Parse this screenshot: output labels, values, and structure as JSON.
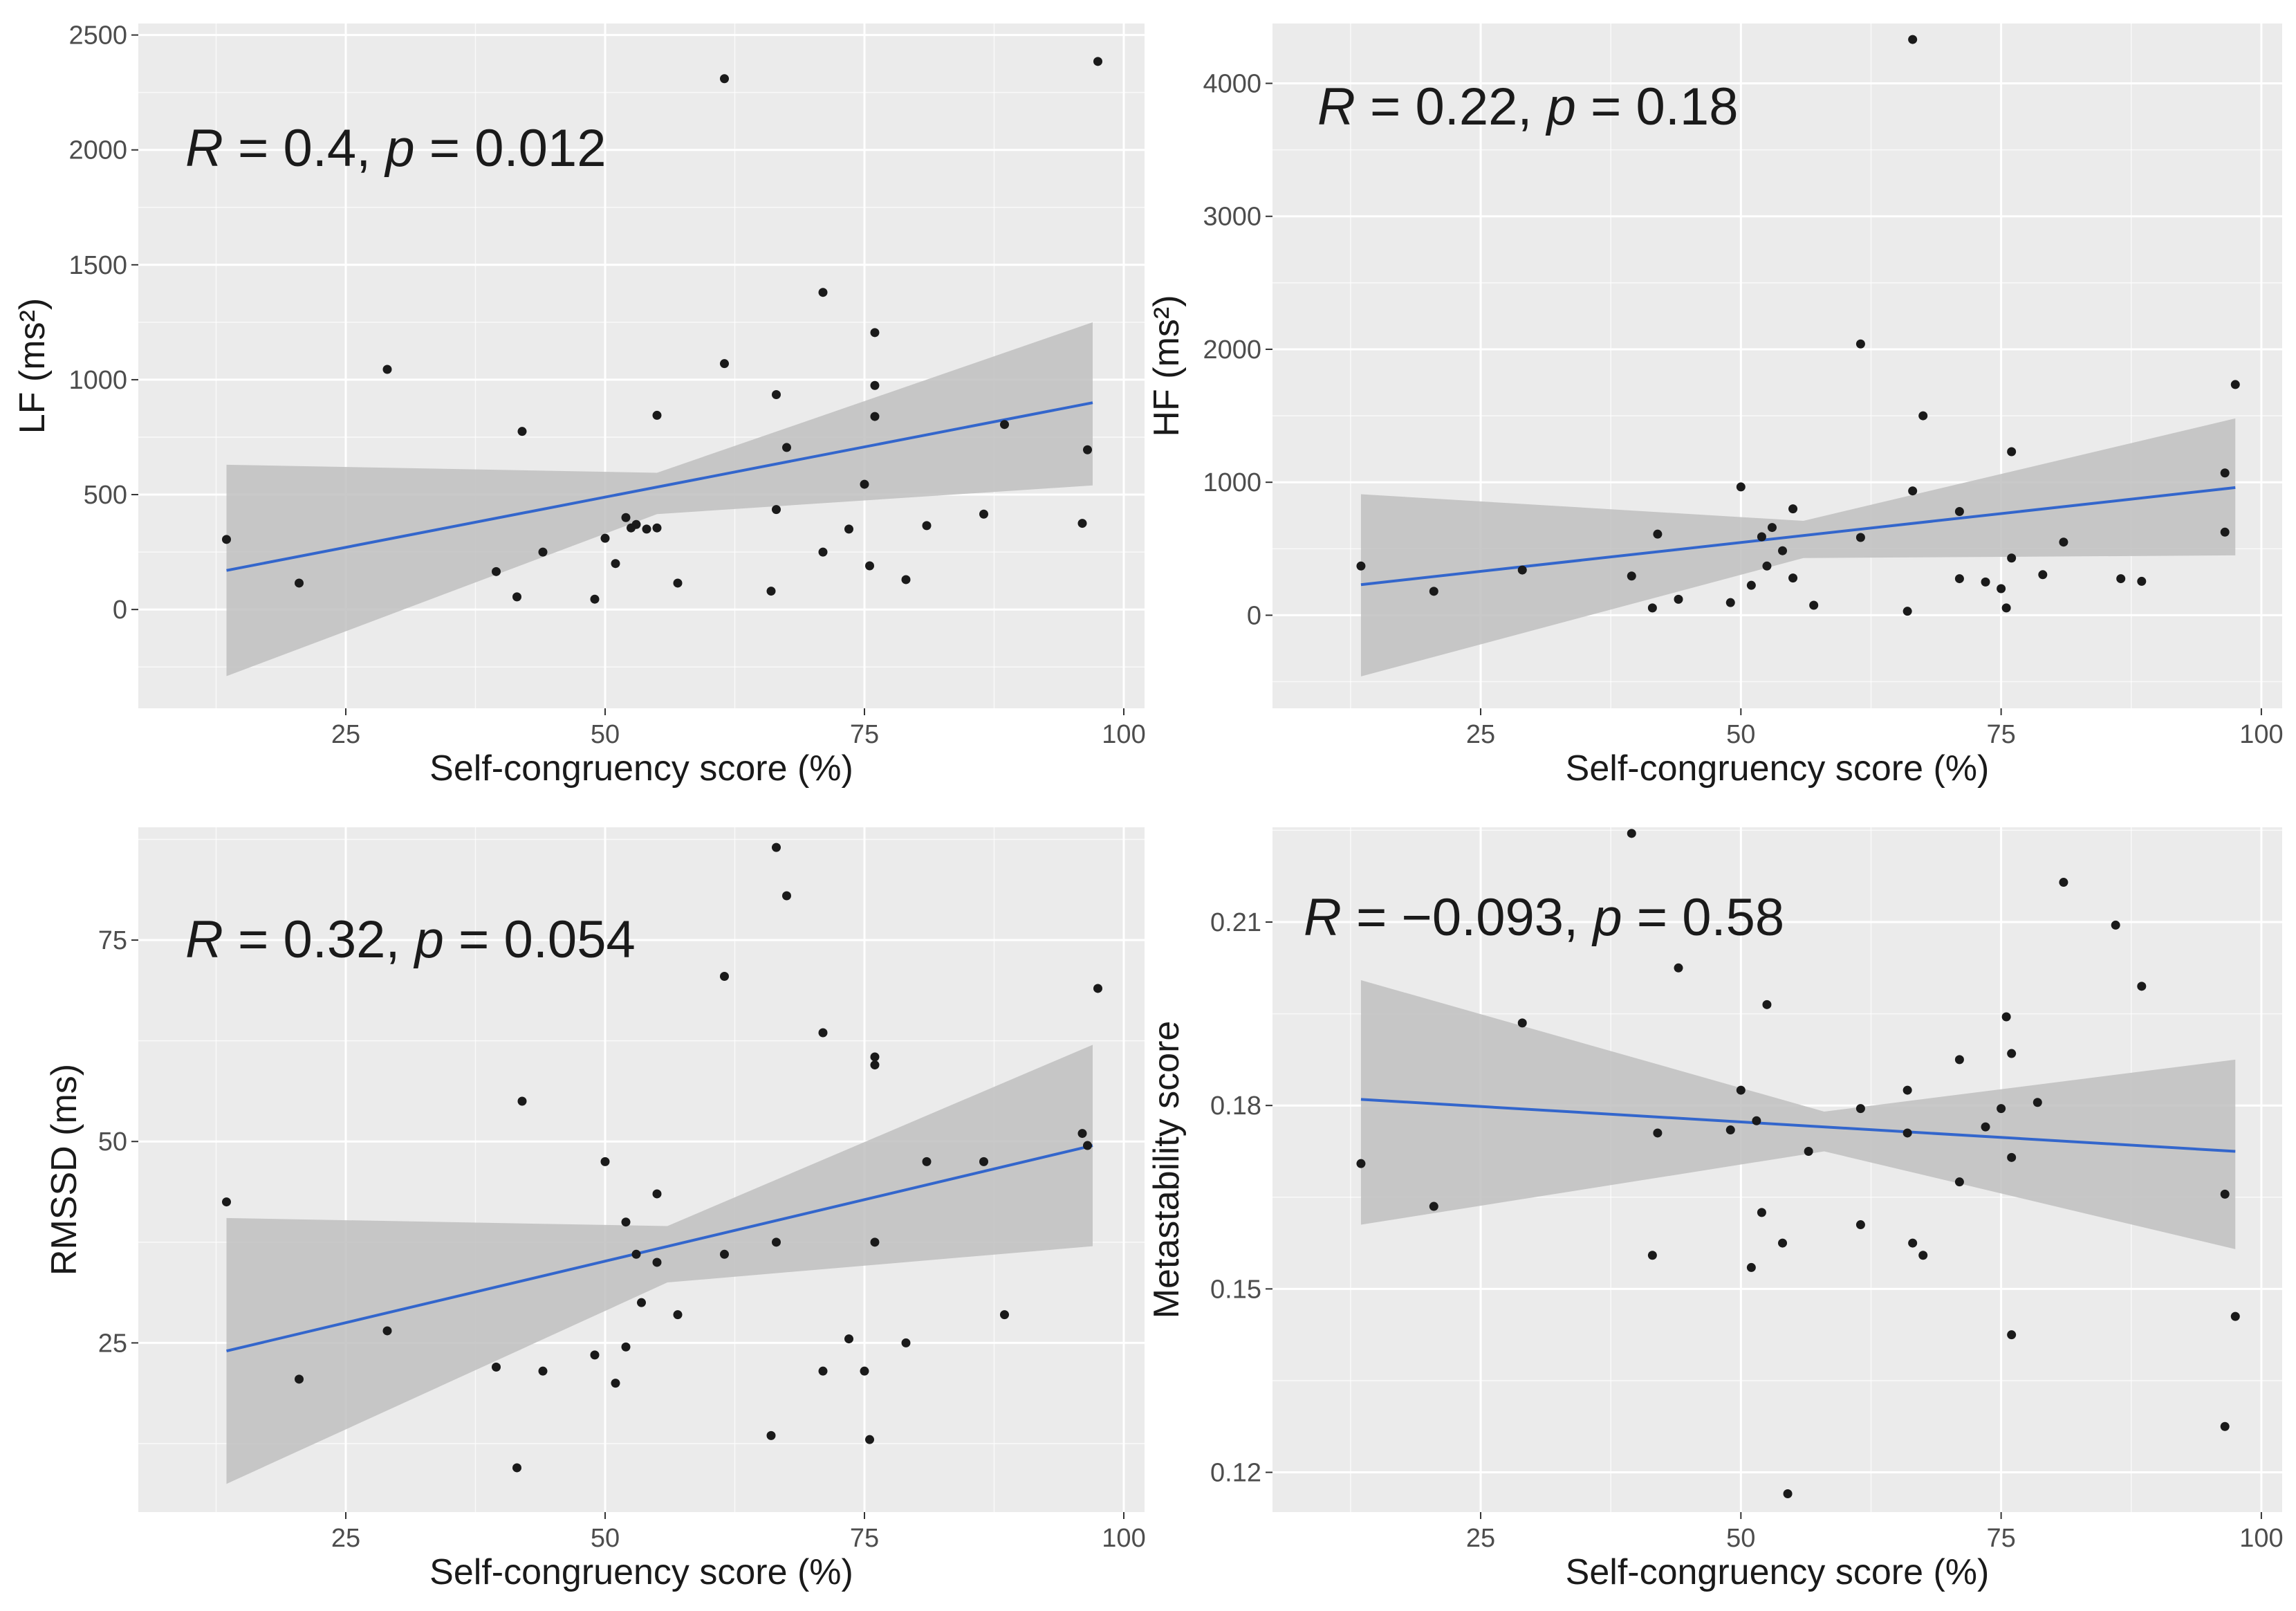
{
  "colors": {
    "panel_bg": "#ebebeb",
    "grid_major": "#ffffff",
    "point": "#1a1a1a",
    "fit_line": "#3366cc",
    "ci_band": "#bfbfbf"
  },
  "chart_data": [
    {
      "type": "scatter",
      "id": "lf",
      "title": "",
      "xlabel": "Self-congruency score (%)",
      "ylabel": "LF (ms²)",
      "annotation": {
        "r_sym": "R",
        "r_val": " = 0.4, ",
        "p_sym": "p",
        "p_val": " = 0.012"
      },
      "xlim": [
        5,
        102
      ],
      "ylim": [
        -430,
        2550
      ],
      "x_ticks": [
        25,
        50,
        75,
        100
      ],
      "x_tick_labels": [
        "25",
        "50",
        "75",
        "100"
      ],
      "y_ticks": [
        0,
        500,
        1000,
        1500,
        2000,
        2500
      ],
      "y_tick_labels": [
        "0",
        "500",
        "1000",
        "1500",
        "2000",
        "2500"
      ],
      "grid": true,
      "fit": {
        "x": [
          13.5,
          97
        ],
        "y": [
          170,
          900
        ]
      },
      "ci": {
        "x": [
          13.5,
          55,
          97
        ],
        "lower": [
          -290,
          415,
          540
        ],
        "upper": [
          630,
          595,
          1250
        ]
      },
      "points": [
        [
          13.5,
          305
        ],
        [
          20.5,
          115
        ],
        [
          29,
          1045
        ],
        [
          39.5,
          165
        ],
        [
          41.5,
          55
        ],
        [
          42,
          775
        ],
        [
          44,
          250
        ],
        [
          49,
          45
        ],
        [
          50,
          310
        ],
        [
          51,
          200
        ],
        [
          52,
          400
        ],
        [
          52.5,
          355
        ],
        [
          53,
          370
        ],
        [
          54,
          350
        ],
        [
          55,
          355
        ],
        [
          55,
          845
        ],
        [
          57,
          115
        ],
        [
          61.5,
          2310
        ],
        [
          61.5,
          1070
        ],
        [
          66,
          80
        ],
        [
          66.5,
          935
        ],
        [
          66.5,
          435
        ],
        [
          67.5,
          705
        ],
        [
          71,
          1380
        ],
        [
          71,
          250
        ],
        [
          73.5,
          350
        ],
        [
          75,
          545
        ],
        [
          75.5,
          190
        ],
        [
          76,
          1205
        ],
        [
          76,
          975
        ],
        [
          76,
          840
        ],
        [
          79,
          130
        ],
        [
          81,
          365
        ],
        [
          86.5,
          415
        ],
        [
          88.5,
          805
        ],
        [
          96,
          375
        ],
        [
          96.5,
          695
        ],
        [
          97.5,
          2385
        ]
      ]
    },
    {
      "type": "scatter",
      "id": "hf",
      "title": "",
      "xlabel": "Self-congruency score (%)",
      "ylabel": "HF (ms²)",
      "annotation": {
        "r_sym": "R",
        "r_val": " = 0.22, ",
        "p_sym": "p",
        "p_val": " = 0.18"
      },
      "xlim": [
        5,
        102
      ],
      "ylim": [
        -700,
        4450
      ],
      "x_ticks": [
        25,
        50,
        75,
        100
      ],
      "x_tick_labels": [
        "25",
        "50",
        "75",
        "100"
      ],
      "y_ticks": [
        0,
        1000,
        2000,
        3000,
        4000
      ],
      "y_tick_labels": [
        "0",
        "1000",
        "2000",
        "3000",
        "4000"
      ],
      "grid": true,
      "fit": {
        "x": [
          13.5,
          97.5
        ],
        "y": [
          230,
          960
        ]
      },
      "ci": {
        "x": [
          13.5,
          56,
          97.5
        ],
        "lower": [
          -460,
          430,
          450
        ],
        "upper": [
          910,
          710,
          1480
        ]
      },
      "points": [
        [
          13.5,
          370
        ],
        [
          20.5,
          180
        ],
        [
          29,
          340
        ],
        [
          39.5,
          295
        ],
        [
          41.5,
          55
        ],
        [
          42,
          610
        ],
        [
          44,
          120
        ],
        [
          49,
          95
        ],
        [
          50,
          965
        ],
        [
          51,
          225
        ],
        [
          52,
          590
        ],
        [
          52.5,
          370
        ],
        [
          53,
          660
        ],
        [
          54,
          485
        ],
        [
          55,
          280
        ],
        [
          55,
          800
        ],
        [
          57,
          75
        ],
        [
          61.5,
          2040
        ],
        [
          61.5,
          585
        ],
        [
          66,
          30
        ],
        [
          66.5,
          935
        ],
        [
          67.5,
          1500
        ],
        [
          71,
          780
        ],
        [
          71,
          275
        ],
        [
          73.5,
          250
        ],
        [
          75,
          200
        ],
        [
          75.5,
          55
        ],
        [
          76,
          1230
        ],
        [
          76,
          430
        ],
        [
          79,
          305
        ],
        [
          81,
          550
        ],
        [
          86.5,
          275
        ],
        [
          88.5,
          255
        ],
        [
          96.5,
          1070
        ],
        [
          96.5,
          625
        ],
        [
          97.5,
          1735
        ],
        [
          66.5,
          4330
        ]
      ]
    },
    {
      "type": "scatter",
      "id": "rmssd",
      "title": "",
      "xlabel": "Self-congruency score (%)",
      "ylabel": "RMSSD (ms)",
      "annotation": {
        "r_sym": "R",
        "r_val": " = 0.32, ",
        "p_sym": "p",
        "p_val": " = 0.054"
      },
      "xlim": [
        5,
        102
      ],
      "ylim": [
        4,
        89
      ],
      "x_ticks": [
        25,
        50,
        75,
        100
      ],
      "x_tick_labels": [
        "25",
        "50",
        "75",
        "100"
      ],
      "y_ticks": [
        25,
        50,
        75
      ],
      "y_tick_labels": [
        "25",
        "50",
        "75"
      ],
      "grid": true,
      "fit": {
        "x": [
          13.5,
          97
        ],
        "y": [
          24,
          49.5
        ]
      },
      "ci": {
        "x": [
          13.5,
          56,
          97
        ],
        "lower": [
          7.5,
          32.5,
          37
        ],
        "upper": [
          40.5,
          39.5,
          62
        ]
      },
      "points": [
        [
          13.5,
          42.5
        ],
        [
          20.5,
          20.5
        ],
        [
          29,
          26.5
        ],
        [
          39.5,
          22
        ],
        [
          41.5,
          9.5
        ],
        [
          42,
          55
        ],
        [
          44,
          21.5
        ],
        [
          49,
          23.5
        ],
        [
          50,
          47.5
        ],
        [
          51,
          20
        ],
        [
          52,
          40
        ],
        [
          52,
          24.5
        ],
        [
          53,
          36
        ],
        [
          53.5,
          30
        ],
        [
          55,
          35
        ],
        [
          55,
          43.5
        ],
        [
          57,
          28.5
        ],
        [
          61.5,
          70.5
        ],
        [
          61.5,
          36
        ],
        [
          66,
          13.5
        ],
        [
          66.5,
          37.5
        ],
        [
          66.5,
          86.5
        ],
        [
          67.5,
          80.5
        ],
        [
          71,
          63.5
        ],
        [
          71,
          21.5
        ],
        [
          73.5,
          25.5
        ],
        [
          75,
          21.5
        ],
        [
          75.5,
          13
        ],
        [
          76,
          60.5
        ],
        [
          76,
          59.5
        ],
        [
          76,
          37.5
        ],
        [
          79,
          25
        ],
        [
          81,
          47.5
        ],
        [
          86.5,
          47.5
        ],
        [
          88.5,
          28.5
        ],
        [
          96,
          51
        ],
        [
          96.5,
          49.5
        ],
        [
          97.5,
          69
        ]
      ]
    },
    {
      "type": "scatter",
      "id": "metastability",
      "title": "",
      "xlabel": "Self-congruency score (%)",
      "ylabel": "Metastability score",
      "annotation": {
        "r_sym": "R",
        "r_val": " = −0.093, ",
        "p_sym": "p",
        "p_val": " = 0.58"
      },
      "xlim": [
        5,
        102
      ],
      "ylim": [
        0.1135,
        0.2255
      ],
      "x_ticks": [
        25,
        50,
        75,
        100
      ],
      "x_tick_labels": [
        "25",
        "50",
        "75",
        "100"
      ],
      "y_ticks": [
        0.12,
        0.15,
        0.18,
        0.21
      ],
      "y_tick_labels": [
        "0.12",
        "0.15",
        "0.18",
        "0.21"
      ],
      "grid": true,
      "fit": {
        "x": [
          13.5,
          97.5
        ],
        "y": [
          0.181,
          0.1725
        ]
      },
      "ci": {
        "x": [
          13.5,
          58,
          97.5
        ],
        "lower": [
          0.1605,
          0.1725,
          0.1565
        ],
        "upper": [
          0.2005,
          0.179,
          0.1875
        ]
      },
      "points": [
        [
          13.5,
          0.1705
        ],
        [
          20.5,
          0.1635
        ],
        [
          29,
          0.1935
        ],
        [
          39.5,
          0.2245
        ],
        [
          41.5,
          0.1555
        ],
        [
          42,
          0.1755
        ],
        [
          44,
          0.2025
        ],
        [
          49,
          0.176
        ],
        [
          50,
          0.1825
        ],
        [
          51,
          0.1535
        ],
        [
          51.5,
          0.1775
        ],
        [
          52,
          0.1625
        ],
        [
          52.5,
          0.1965
        ],
        [
          54,
          0.1575
        ],
        [
          54.5,
          0.1165
        ],
        [
          56.5,
          0.1725
        ],
        [
          61.5,
          0.1795
        ],
        [
          61.5,
          0.1605
        ],
        [
          66,
          0.1825
        ],
        [
          66,
          0.1755
        ],
        [
          66.5,
          0.1575
        ],
        [
          67.5,
          0.1555
        ],
        [
          71,
          0.1875
        ],
        [
          71,
          0.1675
        ],
        [
          73.5,
          0.1765
        ],
        [
          75,
          0.1795
        ],
        [
          75.5,
          0.1945
        ],
        [
          76,
          0.1885
        ],
        [
          76,
          0.1715
        ],
        [
          76,
          0.1425
        ],
        [
          78.5,
          0.1805
        ],
        [
          81,
          0.2165
        ],
        [
          86,
          0.2095
        ],
        [
          88.5,
          0.1995
        ],
        [
          96.5,
          0.1655
        ],
        [
          96.5,
          0.1275
        ],
        [
          97.5,
          0.1455
        ]
      ]
    }
  ]
}
